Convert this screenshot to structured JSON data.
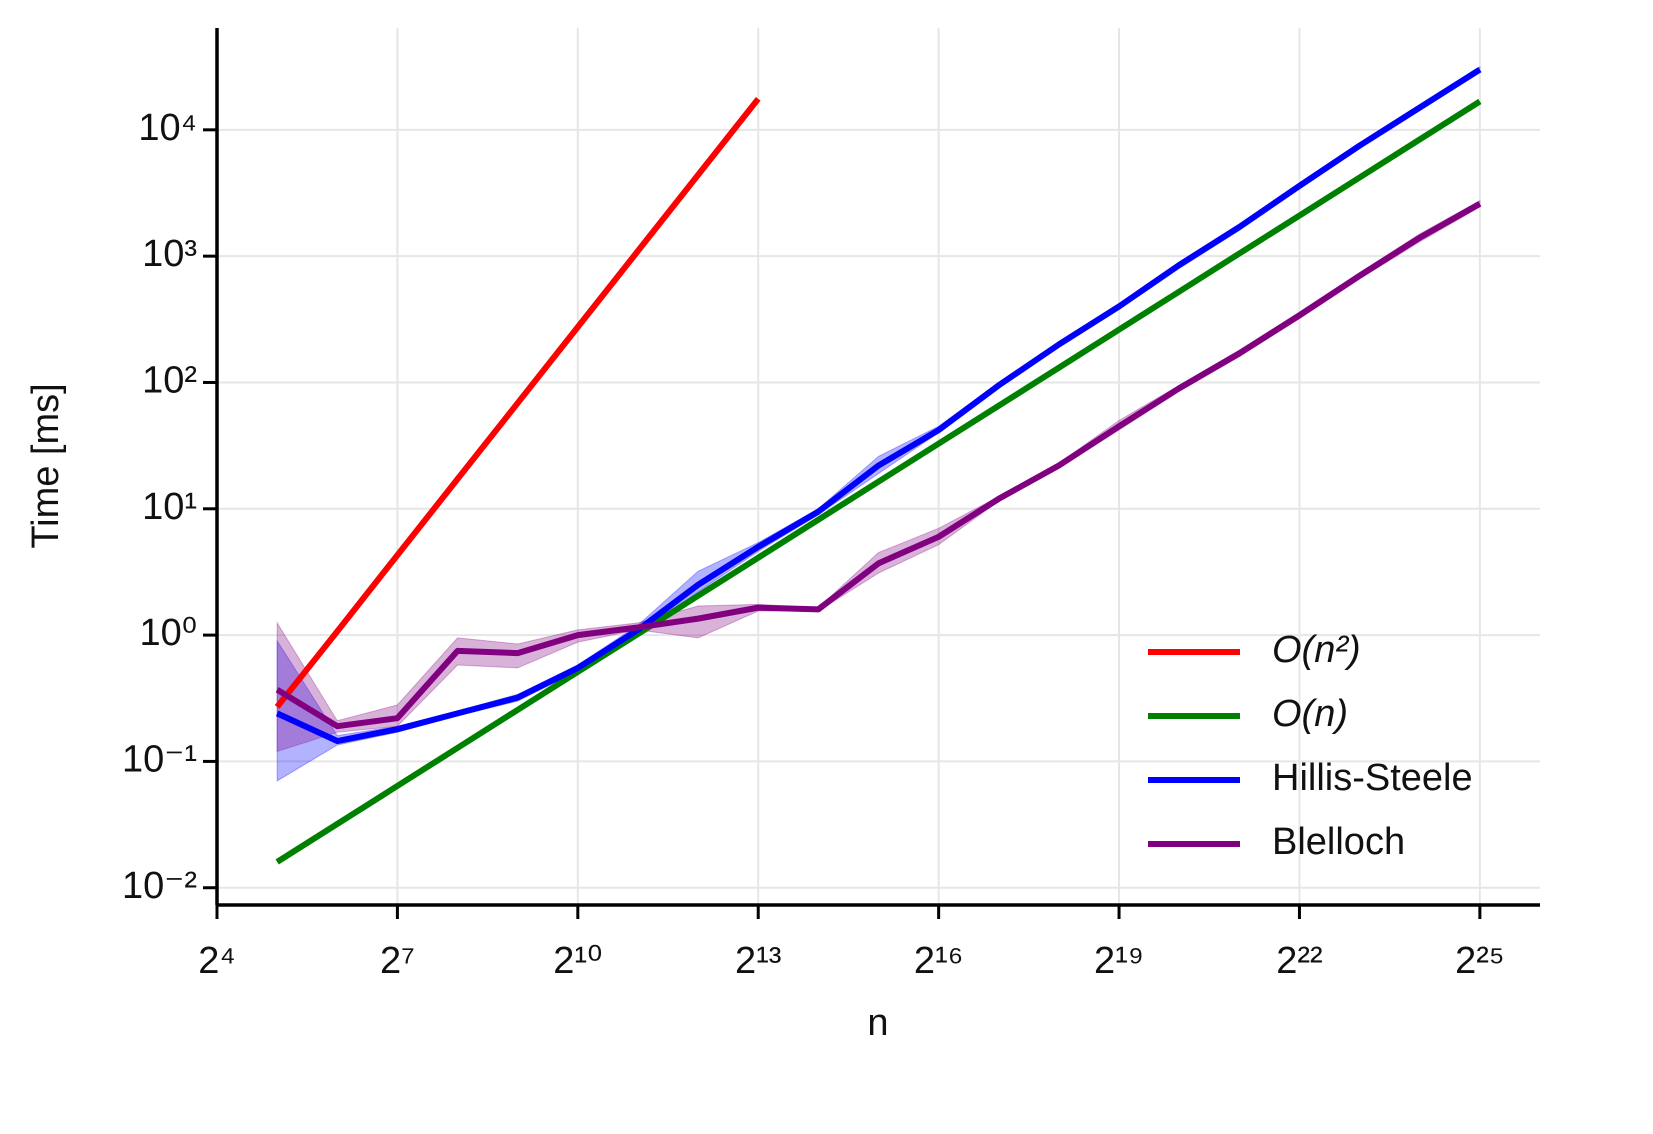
{
  "chart_data": {
    "type": "line",
    "xlabel": "n",
    "ylabel": "Time [ms]",
    "xscale": "log2",
    "yscale": "log10",
    "grid": true,
    "legend": "lower right",
    "x": [
      32,
      64,
      128,
      256,
      512,
      1024,
      2048,
      4096,
      8192,
      16384,
      32768,
      65536,
      131072,
      262144,
      524288,
      1048576,
      2097152,
      4194304,
      8388608,
      16777216,
      33554432
    ],
    "xlim": [
      16,
      67108864
    ],
    "ylim": [
      0.0073,
      64000
    ],
    "xticks": [
      {
        "value": 16,
        "label": "2⁴"
      },
      {
        "value": 128,
        "label": "2⁷"
      },
      {
        "value": 1024,
        "label": "2¹⁰"
      },
      {
        "value": 8192,
        "label": "2¹³"
      },
      {
        "value": 65536,
        "label": "2¹⁶"
      },
      {
        "value": 524288,
        "label": "2¹⁹"
      },
      {
        "value": 4194304,
        "label": "2²²"
      },
      {
        "value": 33554432,
        "label": "2²⁵"
      }
    ],
    "yticks": [
      {
        "value": 0.01,
        "label": "10⁻²"
      },
      {
        "value": 0.1,
        "label": "10⁻¹"
      },
      {
        "value": 1,
        "label": "10⁰"
      },
      {
        "value": 10,
        "label": "10¹"
      },
      {
        "value": 100,
        "label": "10²"
      },
      {
        "value": 1000,
        "label": "10³"
      },
      {
        "value": 10000,
        "label": "10⁴"
      }
    ],
    "series": [
      {
        "name": "O(n²)",
        "color": "#ff0000",
        "values": [
          0.27,
          1.07,
          4.3,
          17.2,
          68.7,
          275,
          1100,
          4400,
          17600,
          null,
          null,
          null,
          null,
          null,
          null,
          null,
          null,
          null,
          null,
          null,
          null
        ]
      },
      {
        "name": "O(n)",
        "color": "#008000",
        "values": [
          0.016,
          0.032,
          0.064,
          0.128,
          0.256,
          0.512,
          1.02,
          2.05,
          4.1,
          8.2,
          16.4,
          32.8,
          65.5,
          131,
          262,
          524,
          1049,
          2097,
          4194,
          8389,
          16777
        ]
      },
      {
        "name": "Hillis-Steele",
        "color": "#0000ff",
        "values": [
          0.24,
          0.145,
          0.18,
          0.24,
          0.32,
          0.55,
          1.1,
          2.5,
          5,
          9.5,
          22,
          42,
          95,
          200,
          400,
          850,
          1700,
          3600,
          7500,
          15000,
          30000
        ],
        "lower": [
          0.07,
          0.135,
          0.17,
          0.23,
          0.3,
          0.52,
          1.0,
          2.2,
          4.6,
          9,
          19,
          40,
          90,
          190,
          380,
          800,
          1600,
          3400,
          7100,
          14200,
          28500
        ],
        "upper": [
          0.9,
          0.16,
          0.19,
          0.25,
          0.34,
          0.58,
          1.2,
          3.2,
          5.4,
          10,
          26,
          45,
          100,
          210,
          420,
          900,
          1800,
          3800,
          7900,
          15800,
          31500
        ]
      },
      {
        "name": "Blelloch",
        "color": "#800080",
        "values": [
          0.37,
          0.19,
          0.22,
          0.75,
          0.72,
          1.0,
          1.15,
          1.35,
          1.65,
          1.6,
          3.7,
          6.0,
          12,
          22,
          45,
          90,
          170,
          340,
          700,
          1400,
          2600
        ],
        "lower": [
          0.12,
          0.17,
          0.19,
          0.58,
          0.55,
          0.88,
          1.1,
          0.95,
          1.55,
          1.55,
          3.1,
          5.2,
          11.5,
          21,
          42,
          85,
          160,
          320,
          660,
          1300,
          2450
        ],
        "upper": [
          1.25,
          0.21,
          0.28,
          0.95,
          0.85,
          1.1,
          1.25,
          1.7,
          1.75,
          1.65,
          4.5,
          7.0,
          12.5,
          23,
          50,
          95,
          180,
          360,
          740,
          1500,
          2750
        ]
      }
    ]
  }
}
